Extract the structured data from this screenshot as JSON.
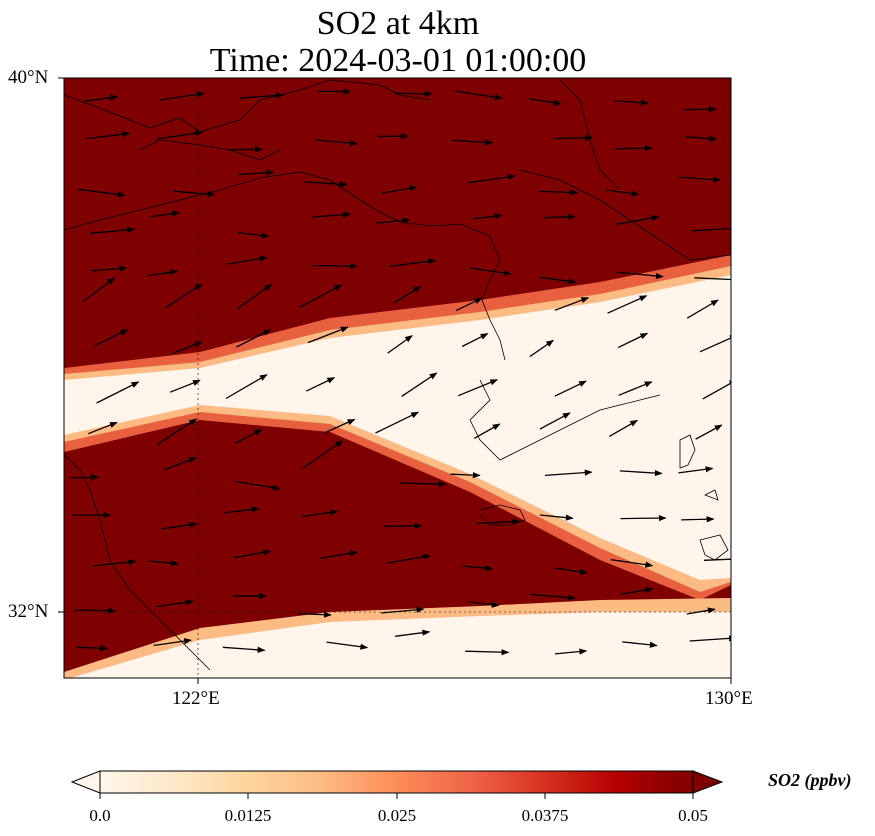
{
  "title_line1": "SO2 at 4km",
  "title_line2": "Time: 2024-03-01 01:00:00",
  "map": {
    "lat_ticks": [
      "40°N",
      "32°N"
    ],
    "lon_ticks": [
      "122°E",
      "130°E"
    ],
    "extent": {
      "lon_min": 120,
      "lon_max": 130,
      "lat_min": 31,
      "lat_max": 40
    },
    "gridlines": "dotted",
    "high_color": "#7f0000",
    "low_color": "#fff5eb"
  },
  "colorbar": {
    "label": "SO2 (ppbv)",
    "ticks": [
      "0.0",
      "0.0125",
      "0.025",
      "0.0375",
      "0.05"
    ],
    "range": [
      0.0,
      0.05
    ],
    "colormap": [
      "#fff7ec",
      "#fee8c8",
      "#fdd49e",
      "#fdbb84",
      "#fc8d59",
      "#ef6548",
      "#d7301f",
      "#b30000",
      "#7f0000"
    ],
    "extend": "both"
  }
}
